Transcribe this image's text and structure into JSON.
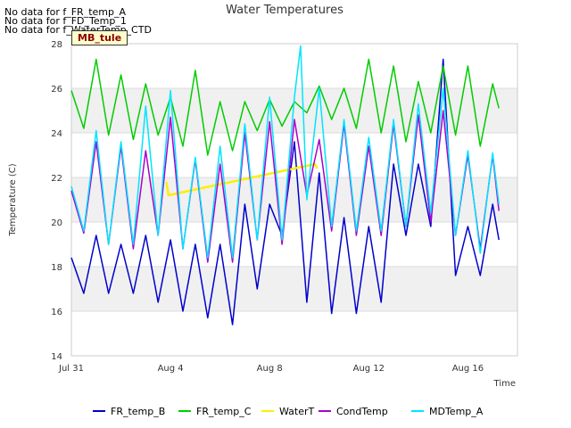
{
  "notices": [
    "No data for f_FR_temp_A",
    "No data for f_FD_Temp_1",
    "No data for f_WaterTemp_CTD"
  ],
  "site_badge": "MB_tule",
  "chart_data": {
    "type": "line",
    "title": "Water Temperatures",
    "xlabel": "Time",
    "ylabel": "Temperature (C)",
    "xlim": [
      "2023-07-31",
      "2023-08-18"
    ],
    "ylim": [
      14,
      28
    ],
    "x_ticks": [
      "Jul 31",
      "Aug 4",
      "Aug 8",
      "Aug 12",
      "Aug 16"
    ],
    "y_ticks": [
      14,
      16,
      18,
      20,
      22,
      24,
      26,
      28
    ],
    "banded_background": true,
    "legend_position": "bottom",
    "series": [
      {
        "name": "FR_temp_B",
        "color": "#0000cc",
        "points": [
          [
            "2023-07-31",
            18.4
          ],
          [
            "2023-07-31T12",
            16.8
          ],
          [
            "2023-08-01",
            19.4
          ],
          [
            "2023-08-01T12",
            16.8
          ],
          [
            "2023-08-02",
            19.0
          ],
          [
            "2023-08-02T12",
            16.8
          ],
          [
            "2023-08-03",
            19.4
          ],
          [
            "2023-08-03T12",
            16.4
          ],
          [
            "2023-08-04",
            19.2
          ],
          [
            "2023-08-04T12",
            16.0
          ],
          [
            "2023-08-05",
            19.0
          ],
          [
            "2023-08-05T12",
            15.7
          ],
          [
            "2023-08-06",
            19.0
          ],
          [
            "2023-08-06T12",
            15.4
          ],
          [
            "2023-08-07",
            20.8
          ],
          [
            "2023-08-07T12",
            17.0
          ],
          [
            "2023-08-08",
            20.8
          ],
          [
            "2023-08-08T12",
            19.4
          ],
          [
            "2023-08-09",
            23.6
          ],
          [
            "2023-08-09T12",
            16.4
          ],
          [
            "2023-08-10",
            22.2
          ],
          [
            "2023-08-10T12",
            15.9
          ],
          [
            "2023-08-11",
            20.2
          ],
          [
            "2023-08-11T12",
            15.9
          ],
          [
            "2023-08-12",
            19.8
          ],
          [
            "2023-08-12T12",
            16.4
          ],
          [
            "2023-08-13",
            22.6
          ],
          [
            "2023-08-13T12",
            19.4
          ],
          [
            "2023-08-14",
            22.6
          ],
          [
            "2023-08-14T12",
            19.8
          ],
          [
            "2023-08-15",
            27.3
          ],
          [
            "2023-08-15T12",
            17.6
          ],
          [
            "2023-08-16",
            19.8
          ],
          [
            "2023-08-16T12",
            17.6
          ],
          [
            "2023-08-17",
            20.8
          ],
          [
            "2023-08-17T06",
            19.2
          ]
        ]
      },
      {
        "name": "FR_temp_C",
        "color": "#00cc00",
        "points": [
          [
            "2023-07-31",
            25.9
          ],
          [
            "2023-07-31T12",
            24.2
          ],
          [
            "2023-08-01",
            27.3
          ],
          [
            "2023-08-01T12",
            23.9
          ],
          [
            "2023-08-02",
            26.6
          ],
          [
            "2023-08-02T12",
            23.7
          ],
          [
            "2023-08-03",
            26.2
          ],
          [
            "2023-08-03T12",
            23.9
          ],
          [
            "2023-08-04",
            25.6
          ],
          [
            "2023-08-04T12",
            23.4
          ],
          [
            "2023-08-05",
            26.8
          ],
          [
            "2023-08-05T12",
            23.0
          ],
          [
            "2023-08-06",
            25.4
          ],
          [
            "2023-08-06T12",
            23.2
          ],
          [
            "2023-08-07",
            25.4
          ],
          [
            "2023-08-07T12",
            24.1
          ],
          [
            "2023-08-08",
            25.5
          ],
          [
            "2023-08-08T12",
            24.3
          ],
          [
            "2023-08-09",
            25.4
          ],
          [
            "2023-08-09T12",
            24.9
          ],
          [
            "2023-08-10",
            26.1
          ],
          [
            "2023-08-10T12",
            24.6
          ],
          [
            "2023-08-11",
            26.0
          ],
          [
            "2023-08-11T12",
            24.2
          ],
          [
            "2023-08-12",
            27.3
          ],
          [
            "2023-08-12T12",
            24.0
          ],
          [
            "2023-08-13",
            27.0
          ],
          [
            "2023-08-13T12",
            23.6
          ],
          [
            "2023-08-14",
            26.3
          ],
          [
            "2023-08-14T12",
            24.0
          ],
          [
            "2023-08-15",
            27.0
          ],
          [
            "2023-08-15T12",
            23.9
          ],
          [
            "2023-08-16",
            27.0
          ],
          [
            "2023-08-16T12",
            23.4
          ],
          [
            "2023-08-17",
            26.2
          ],
          [
            "2023-08-17T06",
            25.1
          ]
        ]
      },
      {
        "name": "WaterT",
        "color": "#ffee00",
        "points": [
          [
            "2023-08-03T20",
            21.8
          ],
          [
            "2023-08-03T22",
            21.2
          ],
          [
            "2023-08-09T20",
            22.6
          ],
          [
            "2023-08-09T22",
            22.4
          ]
        ]
      },
      {
        "name": "CondTemp",
        "color": "#aa00cc",
        "points": [
          [
            "2023-07-31",
            21.4
          ],
          [
            "2023-07-31T12",
            19.5
          ],
          [
            "2023-08-01",
            23.6
          ],
          [
            "2023-08-01T12",
            19.0
          ],
          [
            "2023-08-02",
            23.4
          ],
          [
            "2023-08-02T12",
            18.8
          ],
          [
            "2023-08-03",
            23.2
          ],
          [
            "2023-08-03T12",
            19.4
          ],
          [
            "2023-08-04",
            24.7
          ],
          [
            "2023-08-04T12",
            18.8
          ],
          [
            "2023-08-05",
            22.8
          ],
          [
            "2023-08-05T12",
            18.2
          ],
          [
            "2023-08-06",
            22.6
          ],
          [
            "2023-08-06T12",
            18.2
          ],
          [
            "2023-08-07",
            24.0
          ],
          [
            "2023-08-07T12",
            19.2
          ],
          [
            "2023-08-08",
            24.5
          ],
          [
            "2023-08-08T12",
            19.0
          ],
          [
            "2023-08-09",
            24.6
          ],
          [
            "2023-08-09T12",
            21.2
          ],
          [
            "2023-08-10",
            23.7
          ],
          [
            "2023-08-10T12",
            19.6
          ],
          [
            "2023-08-11",
            24.4
          ],
          [
            "2023-08-11T12",
            19.4
          ],
          [
            "2023-08-12",
            23.4
          ],
          [
            "2023-08-12T12",
            19.4
          ],
          [
            "2023-08-13",
            24.4
          ],
          [
            "2023-08-13T12",
            19.8
          ],
          [
            "2023-08-14",
            24.8
          ],
          [
            "2023-08-14T12",
            20.0
          ],
          [
            "2023-08-15",
            25.0
          ],
          [
            "2023-08-15T12",
            19.4
          ],
          [
            "2023-08-16",
            23.0
          ],
          [
            "2023-08-16T12",
            18.8
          ],
          [
            "2023-08-17",
            23.0
          ],
          [
            "2023-08-17T06",
            20.5
          ]
        ]
      },
      {
        "name": "MDTemp_A",
        "color": "#00e5ff",
        "points": [
          [
            "2023-07-31",
            21.6
          ],
          [
            "2023-07-31T12",
            19.6
          ],
          [
            "2023-08-01",
            24.1
          ],
          [
            "2023-08-01T12",
            19.0
          ],
          [
            "2023-08-02",
            23.6
          ],
          [
            "2023-08-02T12",
            19.0
          ],
          [
            "2023-08-03",
            25.2
          ],
          [
            "2023-08-03T12",
            19.4
          ],
          [
            "2023-08-04",
            25.9
          ],
          [
            "2023-08-04T12",
            18.8
          ],
          [
            "2023-08-05",
            22.9
          ],
          [
            "2023-08-05T12",
            18.4
          ],
          [
            "2023-08-06",
            23.4
          ],
          [
            "2023-08-06T12",
            18.4
          ],
          [
            "2023-08-07",
            24.4
          ],
          [
            "2023-08-07T12",
            19.2
          ],
          [
            "2023-08-08",
            25.6
          ],
          [
            "2023-08-08T12",
            19.2
          ],
          [
            "2023-08-09",
            25.6
          ],
          [
            "2023-08-09T06",
            27.9
          ],
          [
            "2023-08-09T12",
            21.0
          ],
          [
            "2023-08-10",
            26.0
          ],
          [
            "2023-08-10T12",
            19.8
          ],
          [
            "2023-08-11",
            24.6
          ],
          [
            "2023-08-11T12",
            19.6
          ],
          [
            "2023-08-12",
            23.8
          ],
          [
            "2023-08-12T12",
            19.6
          ],
          [
            "2023-08-13",
            24.6
          ],
          [
            "2023-08-13T12",
            19.8
          ],
          [
            "2023-08-14",
            25.3
          ],
          [
            "2023-08-14T12",
            20.4
          ],
          [
            "2023-08-15",
            26.0
          ],
          [
            "2023-08-15T12",
            19.4
          ],
          [
            "2023-08-16",
            23.2
          ],
          [
            "2023-08-16T12",
            18.6
          ],
          [
            "2023-08-17",
            23.1
          ],
          [
            "2023-08-17T06",
            20.8
          ]
        ]
      }
    ]
  }
}
